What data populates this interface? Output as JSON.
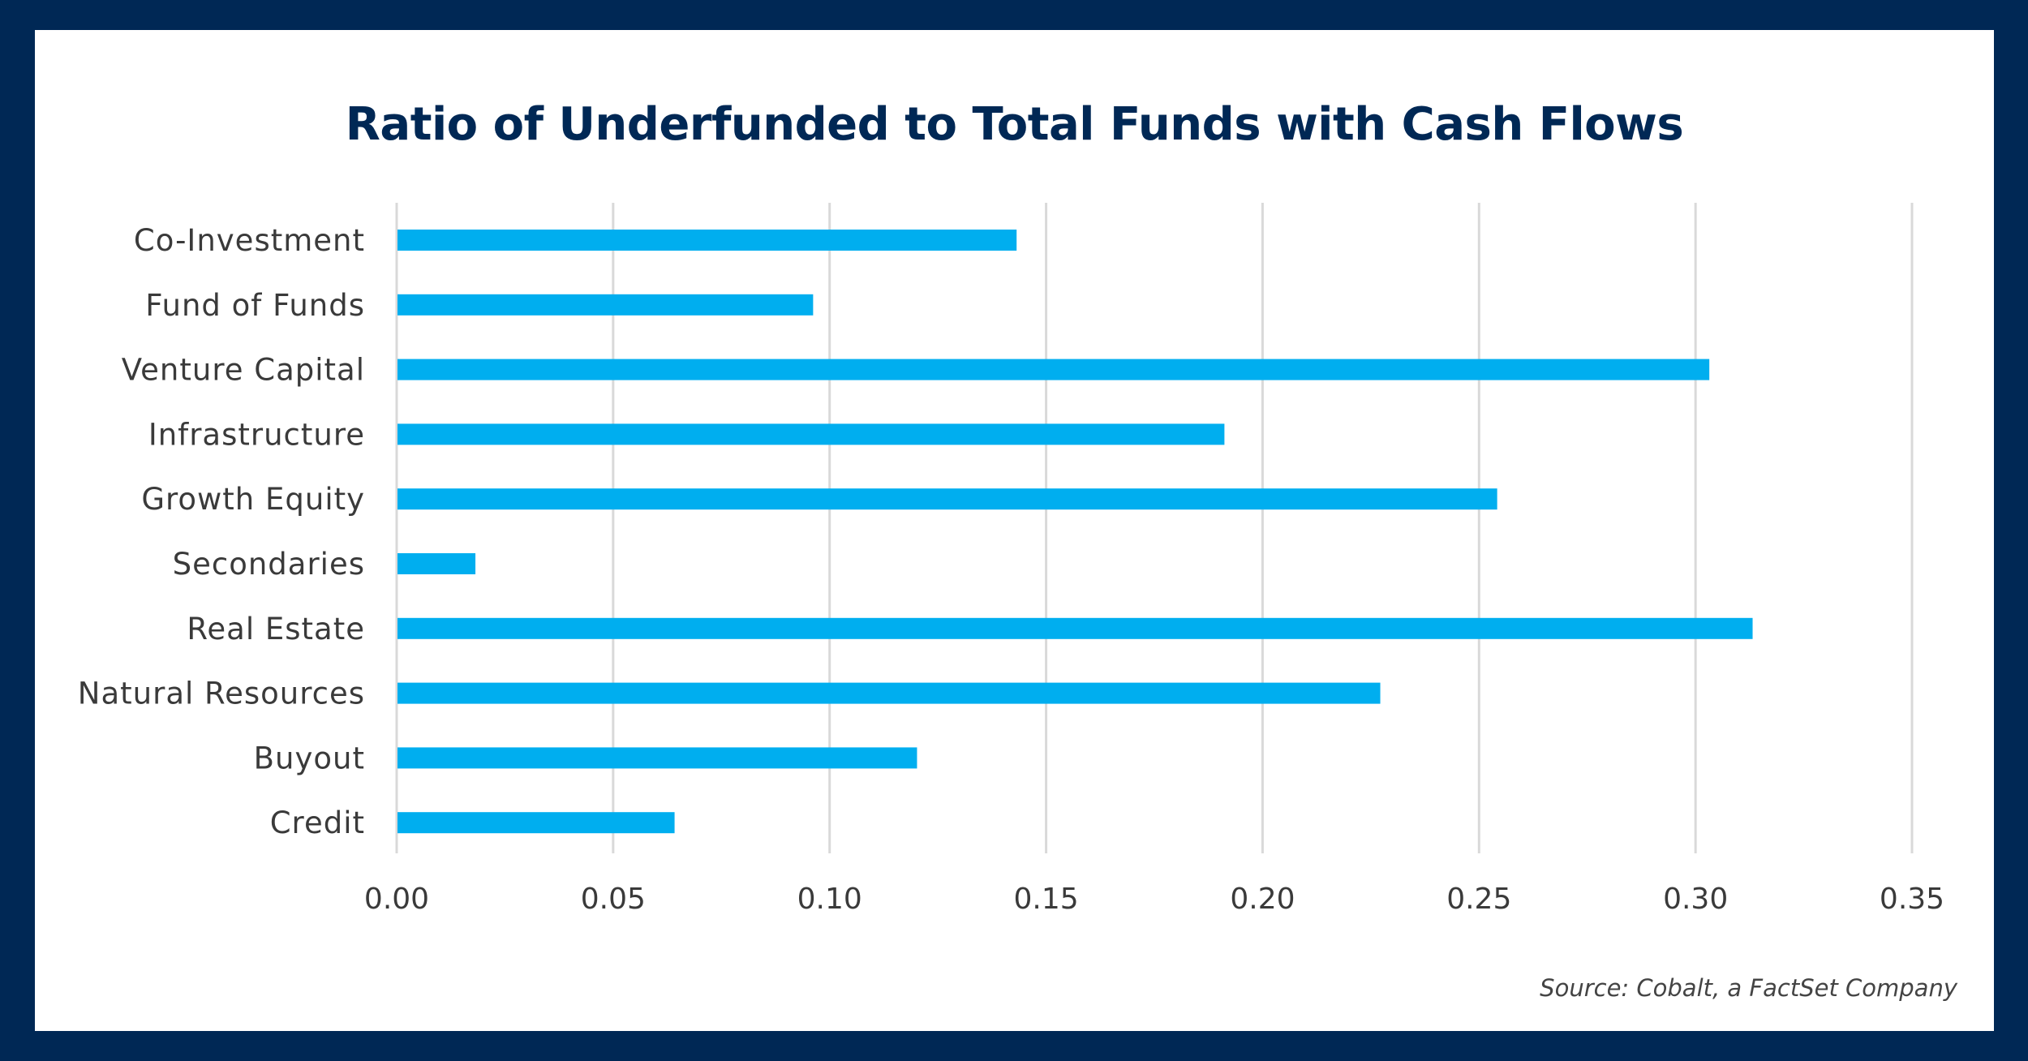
{
  "colors": {
    "bar": "#00AEEF",
    "title": "#002855",
    "frame": "#002855",
    "grid": "#D9D9D9"
  },
  "source": "Source: Cobalt, a FactSet Company",
  "chart_data": {
    "type": "bar",
    "orientation": "horizontal",
    "title": "Ratio of Underfunded to Total Funds with Cash Flows",
    "xlabel": "",
    "ylabel": "",
    "categories": [
      "Co-Investment",
      "Fund of Funds",
      "Venture Capital",
      "Infrastructure",
      "Growth Equity",
      "Secondaries",
      "Real Estate",
      "Natural Resources",
      "Buyout",
      "Credit"
    ],
    "values": [
      0.143,
      0.096,
      0.303,
      0.191,
      0.254,
      0.018,
      0.313,
      0.227,
      0.12,
      0.064
    ],
    "xlim": [
      0,
      0.35
    ],
    "xticks": [
      "0.00",
      "0.05",
      "0.10",
      "0.15",
      "0.20",
      "0.25",
      "0.30",
      "0.35"
    ],
    "grid": "vertical",
    "legend": "none"
  }
}
